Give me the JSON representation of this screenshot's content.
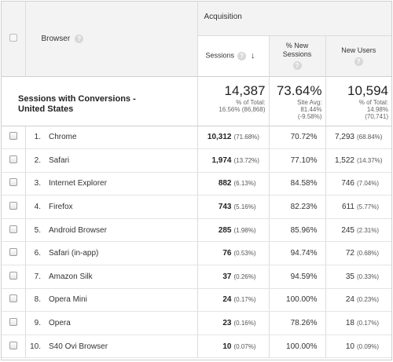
{
  "header": {
    "group_label": "Acquisition",
    "browser_label": "Browser",
    "sessions_label": "Sessions",
    "pct_new_sessions_label_line1": "% New",
    "pct_new_sessions_label_line2": "Sessions",
    "new_users_label": "New Users",
    "help_glyph": "?",
    "sort_arrow": "↓"
  },
  "summary": {
    "title_line1": "Sessions with Conversions -",
    "title_line2": "United States",
    "sessions": {
      "value": "14,387",
      "sub1": "% of Total:",
      "sub2": "16.56% (86,868)"
    },
    "pct_new_sessions": {
      "value": "73.64%",
      "sub1": "Site Avg:",
      "sub2": "81.44%",
      "sub3": "(-9.58%)"
    },
    "new_users": {
      "value": "10,594",
      "sub1": "% of Total:",
      "sub2": "14.98%",
      "sub3": "(70,741)"
    }
  },
  "rows": [
    {
      "index": "1.",
      "browser": "Chrome",
      "sessions": "10,312",
      "sessions_pct": "(71.68%)",
      "pct_new": "70.72%",
      "new_users": "7,293",
      "new_users_pct": "(68.84%)"
    },
    {
      "index": "2.",
      "browser": "Safari",
      "sessions": "1,974",
      "sessions_pct": "(13.72%)",
      "pct_new": "77.10%",
      "new_users": "1,522",
      "new_users_pct": "(14.37%)"
    },
    {
      "index": "3.",
      "browser": "Internet Explorer",
      "sessions": "882",
      "sessions_pct": "(6.13%)",
      "pct_new": "84.58%",
      "new_users": "746",
      "new_users_pct": "(7.04%)"
    },
    {
      "index": "4.",
      "browser": "Firefox",
      "sessions": "743",
      "sessions_pct": "(5.16%)",
      "pct_new": "82.23%",
      "new_users": "611",
      "new_users_pct": "(5.77%)"
    },
    {
      "index": "5.",
      "browser": "Android Browser",
      "sessions": "285",
      "sessions_pct": "(1.98%)",
      "pct_new": "85.96%",
      "new_users": "245",
      "new_users_pct": "(2.31%)"
    },
    {
      "index": "6.",
      "browser": "Safari (in-app)",
      "sessions": "76",
      "sessions_pct": "(0.53%)",
      "pct_new": "94.74%",
      "new_users": "72",
      "new_users_pct": "(0.68%)"
    },
    {
      "index": "7.",
      "browser": "Amazon Silk",
      "sessions": "37",
      "sessions_pct": "(0.26%)",
      "pct_new": "94.59%",
      "new_users": "35",
      "new_users_pct": "(0.33%)"
    },
    {
      "index": "8.",
      "browser": "Opera Mini",
      "sessions": "24",
      "sessions_pct": "(0.17%)",
      "pct_new": "100.00%",
      "new_users": "24",
      "new_users_pct": "(0.23%)"
    },
    {
      "index": "9.",
      "browser": "Opera",
      "sessions": "23",
      "sessions_pct": "(0.16%)",
      "pct_new": "78.26%",
      "new_users": "18",
      "new_users_pct": "(0.17%)"
    },
    {
      "index": "10.",
      "browser": "S40 Ovi Browser",
      "sessions": "10",
      "sessions_pct": "(0.07%)",
      "pct_new": "100.00%",
      "new_users": "10",
      "new_users_pct": "(0.09%)"
    }
  ]
}
